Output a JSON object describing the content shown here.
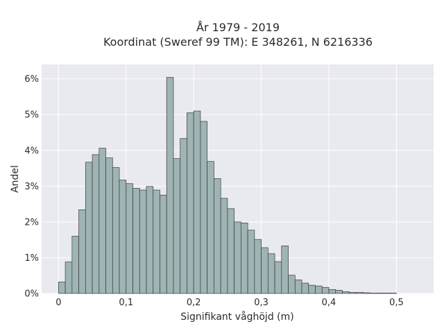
{
  "chart_data": {
    "type": "histogram",
    "title_lines": [
      "År 1979 - 2019",
      "Koordinat (Sweref 99 TM): E 348261, N 6216336"
    ],
    "xlabel": "Signifikant våghöjd (m)",
    "ylabel": "Andel",
    "xlim": [
      -0.025,
      0.555
    ],
    "ylim": [
      0,
      6.4
    ],
    "x_ticks": [
      {
        "value": 0,
        "label": "0"
      },
      {
        "value": 0.1,
        "label": "0,1"
      },
      {
        "value": 0.2,
        "label": "0,2"
      },
      {
        "value": 0.3,
        "label": "0,3"
      },
      {
        "value": 0.4,
        "label": "0,4"
      },
      {
        "value": 0.5,
        "label": "0,5"
      }
    ],
    "y_ticks": [
      {
        "value": 0,
        "label": "0%"
      },
      {
        "value": 1,
        "label": "1%"
      },
      {
        "value": 2,
        "label": "2%"
      },
      {
        "value": 3,
        "label": "3%"
      },
      {
        "value": 4,
        "label": "4%"
      },
      {
        "value": 5,
        "label": "5%"
      },
      {
        "value": 6,
        "label": "6%"
      }
    ],
    "bin_width": 0.01,
    "bin_start": 0,
    "values": [
      0.32,
      0.88,
      1.6,
      2.34,
      3.67,
      3.88,
      4.06,
      3.79,
      3.52,
      3.17,
      3.07,
      2.94,
      2.89,
      2.99,
      2.89,
      2.75,
      6.04,
      3.77,
      4.33,
      5.05,
      5.1,
      4.81,
      3.69,
      3.21,
      2.66,
      2.37,
      2.0,
      1.97,
      1.77,
      1.51,
      1.28,
      1.11,
      0.89,
      1.33,
      0.51,
      0.38,
      0.29,
      0.23,
      0.21,
      0.17,
      0.11,
      0.09,
      0.05,
      0.03,
      0.03,
      0.02,
      0.01,
      0.01,
      0.01,
      0.01
    ],
    "bar_fill": "#9fb4b4",
    "bar_stroke": "#3a3a3a",
    "plot_background": "#e9e9f0",
    "grid": true,
    "grid_color": "#ffffff"
  }
}
